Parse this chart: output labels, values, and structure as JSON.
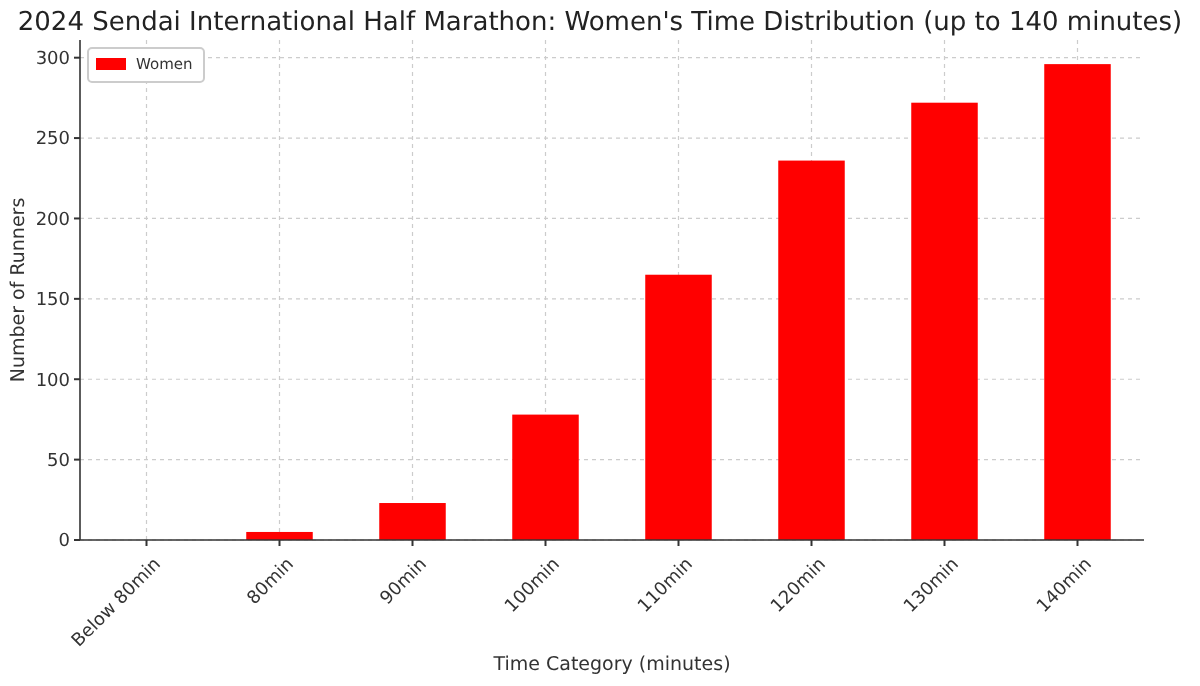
{
  "chart_data": {
    "type": "bar",
    "title": "2024 Sendai International Half Marathon: Women's Time Distribution (up to 140 minutes)",
    "xlabel": "Time Category (minutes)",
    "ylabel": "Number of Runners",
    "categories": [
      "Below 80min",
      "80min",
      "90min",
      "100min",
      "110min",
      "120min",
      "130min",
      "140min"
    ],
    "series": [
      {
        "name": "Women",
        "color": "#ff0000",
        "values": [
          0,
          5,
          23,
          78,
          165,
          236,
          272,
          296
        ]
      }
    ],
    "ylim": [
      0,
      311
    ],
    "yticks": [
      0,
      50,
      100,
      150,
      200,
      250,
      300
    ],
    "grid": true,
    "legend": "top left"
  }
}
